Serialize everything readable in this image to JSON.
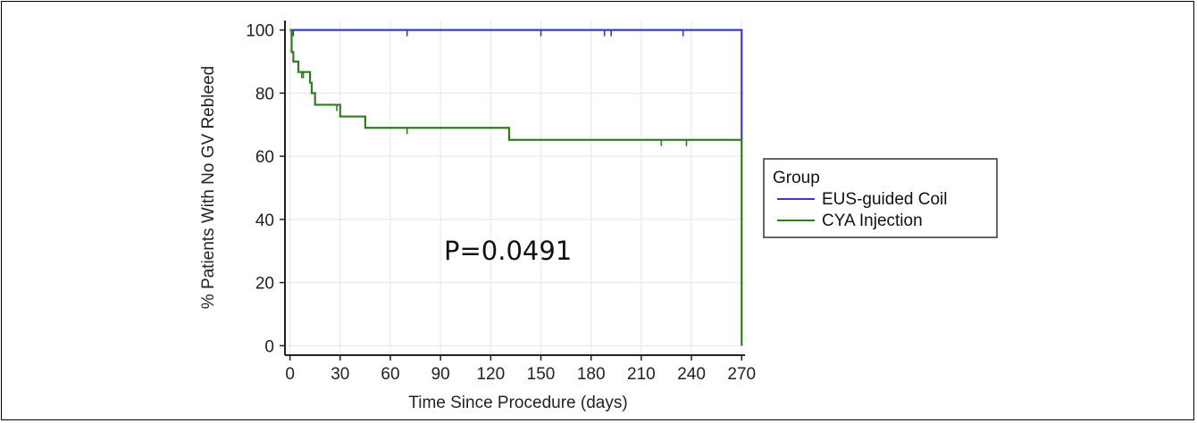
{
  "chart_data": {
    "type": "line",
    "xlabel": "Time Since Procedure (days)",
    "ylabel": "% Patients With No GV Rebleed",
    "xlim": [
      -3,
      272
    ],
    "ylim": [
      -3,
      103
    ],
    "xticks": [
      0,
      30,
      60,
      90,
      120,
      150,
      180,
      210,
      240,
      270
    ],
    "yticks": [
      0,
      20,
      40,
      60,
      80,
      100
    ],
    "grid": true,
    "annotation": "P=0.0491",
    "legend": {
      "title": "Group",
      "placement": "right",
      "entries": [
        "EUS-guided Coil",
        "CYA Injection"
      ]
    },
    "series": [
      {
        "name": "EUS-guided Coil",
        "color": "#3b3bb3",
        "steps": [
          [
            0,
            100
          ],
          [
            270,
            100
          ],
          [
            270,
            65
          ]
        ],
        "censored": [
          [
            2,
            100
          ],
          [
            70,
            100
          ],
          [
            150,
            100
          ],
          [
            188,
            100
          ],
          [
            192,
            100
          ],
          [
            235,
            100
          ]
        ]
      },
      {
        "name": "CYA Injection",
        "color": "#2e7d1f",
        "steps": [
          [
            0,
            100
          ],
          [
            1,
            93
          ],
          [
            2,
            90
          ],
          [
            5,
            86.7
          ],
          [
            12,
            83.3
          ],
          [
            13,
            80
          ],
          [
            15,
            76.3
          ],
          [
            30,
            72.6
          ],
          [
            45,
            69
          ],
          [
            131,
            65.2
          ],
          [
            270,
            65.2
          ],
          [
            270,
            0
          ]
        ],
        "censored": [
          [
            7,
            86.7
          ],
          [
            8,
            86.7
          ],
          [
            28,
            76.3
          ],
          [
            70,
            69
          ],
          [
            222,
            65.2
          ],
          [
            237,
            65.2
          ]
        ]
      }
    ]
  }
}
